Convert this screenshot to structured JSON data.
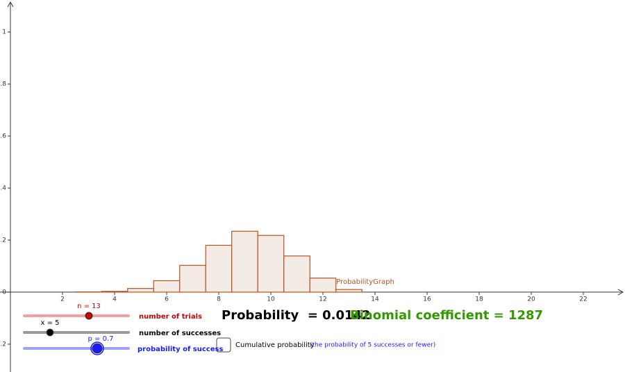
{
  "chart_data": {
    "type": "histogram",
    "series_label": "ProbabilityGraph",
    "bins": [
      -0.5,
      0.5,
      1.5,
      2.5,
      3.5,
      4.5,
      5.5,
      6.5,
      7.5,
      8.5,
      9.5,
      10.5,
      11.5,
      12.5,
      13.5
    ],
    "values": [
      0,
      0,
      0,
      0.001,
      0.003,
      0.014,
      0.044,
      0.103,
      0.18,
      0.234,
      0.218,
      0.139,
      0.054,
      0.01
    ],
    "color": "#b5541f",
    "fill": "#f4ebe6",
    "xlim": [
      -0.4,
      23.6
    ],
    "ylim": [
      -0.307,
      1.123
    ],
    "xticks": [
      2,
      4,
      6,
      8,
      10,
      12,
      14,
      16,
      18,
      20,
      22
    ],
    "yticks": [
      {
        "value": -0.2,
        "label": "−0.2"
      },
      0,
      0.2,
      0.4,
      0.6,
      0.8,
      1
    ]
  },
  "controls": {
    "sliders": [
      {
        "label": "n = 13",
        "caption": "number of trials",
        "color": "#cc0000"
      },
      {
        "label": "x = 5",
        "caption": "number of successes",
        "color": "#000000"
      },
      {
        "label": "p = 0.7",
        "caption": "probability of success",
        "color": "#1a1aff"
      }
    ],
    "probability": "Probability  = 0.0142",
    "binomial": "Binomial coefficient = 1287",
    "checkbox": "Cumulative probability",
    "note": "(the probability of 5 successes or fewer)"
  }
}
